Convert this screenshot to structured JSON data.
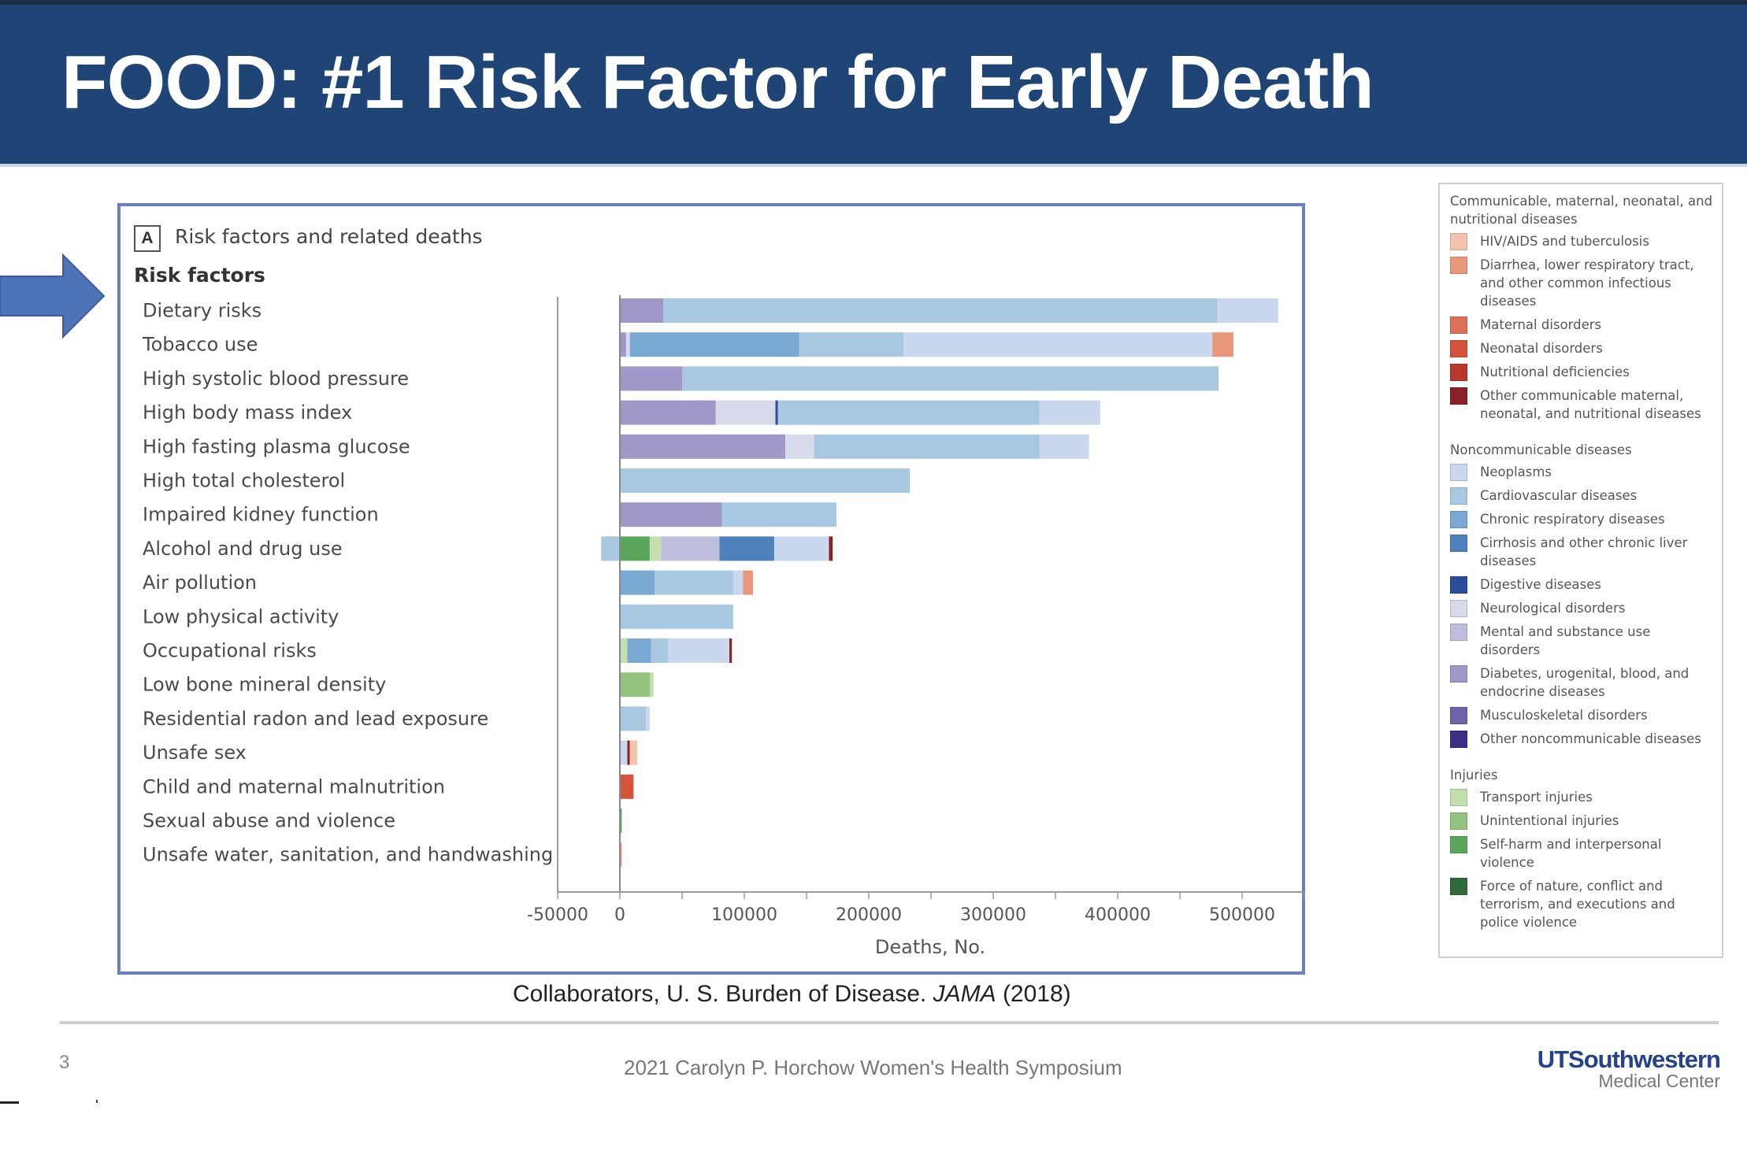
{
  "slide": {
    "title": "FOOD: #1 Risk Factor for Early Death",
    "page_number": "3",
    "footer_text": "2021 Carolyn P. Horchow Women's Health Symposium",
    "logo_main": "UTSouthwestern",
    "logo_sub": "Medical Center",
    "citation_prefix": "Collaborators, U. S. Burden of Disease. ",
    "citation_journal": "JAMA",
    "citation_suffix": " (2018)",
    "arrow_icon": "right-arrow-icon"
  },
  "figure": {
    "panel_letter": "A",
    "panel_title": "Risk factors and related deaths",
    "categories_heading": "Risk factors"
  },
  "colors": {
    "hiv_tb": "#f2c4ae",
    "diarrhea_lri": "#e8987a",
    "maternal": "#dd7158",
    "neonatal": "#d4533a",
    "nutritional": "#b8372f",
    "other_communicable": "#8b2227",
    "neoplasms": "#c9d8ee",
    "cardiovascular": "#a8c8e2",
    "chronic_respiratory": "#7aaad4",
    "cirrhosis": "#4e80bc",
    "digestive": "#2b4c9a",
    "neurological": "#d8dbe9",
    "mental_substance": "#bdbddc",
    "diabetes_ckd": "#9f98c8",
    "musculoskeletal": "#6e63a8",
    "other_ncd": "#3c2d86",
    "transport": "#c3dfae",
    "unintentional": "#94c27f",
    "self_harm": "#5aa75c",
    "force_of_nature": "#2f6b3c"
  },
  "legend": {
    "groups": [
      {
        "title": "Communicable, maternal, neonatal, and nutritional diseases",
        "items": [
          {
            "key": "hiv_tb",
            "label": "HIV/AIDS and tuberculosis"
          },
          {
            "key": "diarrhea_lri",
            "label": "Diarrhea, lower respiratory tract, and other common infectious diseases"
          },
          {
            "key": "maternal",
            "label": "Maternal disorders"
          },
          {
            "key": "neonatal",
            "label": "Neonatal disorders"
          },
          {
            "key": "nutritional",
            "label": "Nutritional deficiencies"
          },
          {
            "key": "other_communicable",
            "label": "Other communicable maternal, neonatal, and nutritional diseases"
          }
        ]
      },
      {
        "title": "Noncommunicable diseases",
        "items": [
          {
            "key": "neoplasms",
            "label": "Neoplasms"
          },
          {
            "key": "cardiovascular",
            "label": "Cardiovascular diseases"
          },
          {
            "key": "chronic_respiratory",
            "label": "Chronic respiratory diseases"
          },
          {
            "key": "cirrhosis",
            "label": "Cirrhosis and other chronic liver diseases"
          },
          {
            "key": "digestive",
            "label": "Digestive diseases"
          },
          {
            "key": "neurological",
            "label": "Neurological disorders"
          },
          {
            "key": "mental_substance",
            "label": "Mental and substance use disorders"
          },
          {
            "key": "diabetes_ckd",
            "label": "Diabetes, urogenital, blood, and endocrine diseases"
          },
          {
            "key": "musculoskeletal",
            "label": "Musculoskeletal disorders"
          },
          {
            "key": "other_ncd",
            "label": "Other noncommunicable diseases"
          }
        ]
      },
      {
        "title": "Injuries",
        "items": [
          {
            "key": "transport",
            "label": "Transport injuries"
          },
          {
            "key": "unintentional",
            "label": "Unintentional injuries"
          },
          {
            "key": "self_harm",
            "label": "Self-harm and interpersonal violence"
          },
          {
            "key": "force_of_nature",
            "label": "Force of nature, conflict and terrorism, and executions and police violence"
          }
        ]
      }
    ]
  },
  "chart_data": {
    "type": "bar",
    "orientation": "horizontal",
    "stacked": true,
    "title": "Risk factors and related deaths",
    "xlabel": "Deaths, No.",
    "ylabel": "Risk factors",
    "xlim": [
      -50000,
      550000
    ],
    "xticks": [
      -50000,
      0,
      100000,
      200000,
      300000,
      400000,
      500000
    ],
    "xtick_labels": [
      "-50000",
      "0",
      "100000",
      "200000",
      "300000",
      "400000",
      "500000"
    ],
    "grid": false,
    "legend_position": "right",
    "categories": [
      "Dietary risks",
      "Tobacco use",
      "High systolic blood pressure",
      "High body mass index",
      "High fasting plasma glucose",
      "High total cholesterol",
      "Impaired kidney function",
      "Alcohol and drug use",
      "Air pollution",
      "Low physical activity",
      "Occupational risks",
      "Low bone mineral density",
      "Residential radon and lead exposure",
      "Unsafe sex",
      "Child and maternal malnutrition",
      "Sexual abuse and violence",
      "Unsafe water, sanitation, and handwashing"
    ],
    "bars": [
      {
        "category": "Dietary risks",
        "segments": [
          {
            "cause": "diabetes_ckd",
            "value": 35000
          },
          {
            "cause": "cardiovascular",
            "value": 445000
          },
          {
            "cause": "neoplasms",
            "value": 49000
          }
        ]
      },
      {
        "category": "Tobacco use",
        "segments": [
          {
            "cause": "diabetes_ckd",
            "value": 5000
          },
          {
            "cause": "neurological",
            "value": 3000
          },
          {
            "cause": "chronic_respiratory",
            "value": 136000
          },
          {
            "cause": "cardiovascular",
            "value": 84000
          },
          {
            "cause": "neoplasms",
            "value": 248000
          },
          {
            "cause": "diarrhea_lri",
            "value": 17000
          }
        ]
      },
      {
        "category": "High systolic blood pressure",
        "segments": [
          {
            "cause": "diabetes_ckd",
            "value": 50000
          },
          {
            "cause": "cardiovascular",
            "value": 431000
          }
        ]
      },
      {
        "category": "High body mass index",
        "segments": [
          {
            "cause": "diabetes_ckd",
            "value": 77000
          },
          {
            "cause": "neurological",
            "value": 48000
          },
          {
            "cause": "digestive",
            "value": 2000
          },
          {
            "cause": "cardiovascular",
            "value": 210000
          },
          {
            "cause": "neoplasms",
            "value": 49000
          }
        ]
      },
      {
        "category": "High fasting plasma glucose",
        "segments": [
          {
            "cause": "diabetes_ckd",
            "value": 133000
          },
          {
            "cause": "neurological",
            "value": 23000
          },
          {
            "cause": "cardiovascular",
            "value": 181000
          },
          {
            "cause": "neoplasms",
            "value": 40000
          }
        ]
      },
      {
        "category": "High total cholesterol",
        "segments": [
          {
            "cause": "cardiovascular",
            "value": 233000
          }
        ]
      },
      {
        "category": "Impaired kidney function",
        "segments": [
          {
            "cause": "diabetes_ckd",
            "value": 82000
          },
          {
            "cause": "cardiovascular",
            "value": 92000
          }
        ]
      },
      {
        "category": "Alcohol and drug use",
        "segments": [
          {
            "cause": "cardiovascular",
            "value": -15000
          },
          {
            "cause": "self_harm",
            "value": 24000
          },
          {
            "cause": "transport",
            "value": 9000
          },
          {
            "cause": "mental_substance",
            "value": 47000
          },
          {
            "cause": "cirrhosis",
            "value": 44000
          },
          {
            "cause": "neoplasms",
            "value": 44000
          },
          {
            "cause": "other_communicable",
            "value": 3000
          }
        ]
      },
      {
        "category": "Air pollution",
        "segments": [
          {
            "cause": "chronic_respiratory",
            "value": 28000
          },
          {
            "cause": "cardiovascular",
            "value": 63000
          },
          {
            "cause": "neoplasms",
            "value": 8000
          },
          {
            "cause": "diarrhea_lri",
            "value": 8000
          }
        ]
      },
      {
        "category": "Low physical activity",
        "segments": [
          {
            "cause": "cardiovascular",
            "value": 91000
          }
        ]
      },
      {
        "category": "Occupational risks",
        "segments": [
          {
            "cause": "transport",
            "value": 6000
          },
          {
            "cause": "chronic_respiratory",
            "value": 19000
          },
          {
            "cause": "cardiovascular",
            "value": 14000
          },
          {
            "cause": "neoplasms",
            "value": 49000
          },
          {
            "cause": "other_communicable",
            "value": 2000
          }
        ]
      },
      {
        "category": "Low bone mineral density",
        "segments": [
          {
            "cause": "unintentional",
            "value": 24000
          },
          {
            "cause": "transport",
            "value": 3000
          }
        ]
      },
      {
        "category": "Residential radon and lead exposure",
        "segments": [
          {
            "cause": "cardiovascular",
            "value": 21000
          },
          {
            "cause": "neoplasms",
            "value": 3000
          }
        ]
      },
      {
        "category": "Unsafe sex",
        "segments": [
          {
            "cause": "neoplasms",
            "value": 6000
          },
          {
            "cause": "other_communicable",
            "value": 2000
          },
          {
            "cause": "hiv_tb",
            "value": 6000
          }
        ]
      },
      {
        "category": "Child and maternal malnutrition",
        "segments": [
          {
            "cause": "neonatal",
            "value": 11000
          }
        ]
      },
      {
        "category": "Sexual abuse and violence",
        "segments": [
          {
            "cause": "self_harm",
            "value": 1500
          }
        ]
      },
      {
        "category": "Unsafe water, sanitation, and handwashing",
        "segments": [
          {
            "cause": "diarrhea_lri",
            "value": 1500
          }
        ]
      }
    ]
  }
}
